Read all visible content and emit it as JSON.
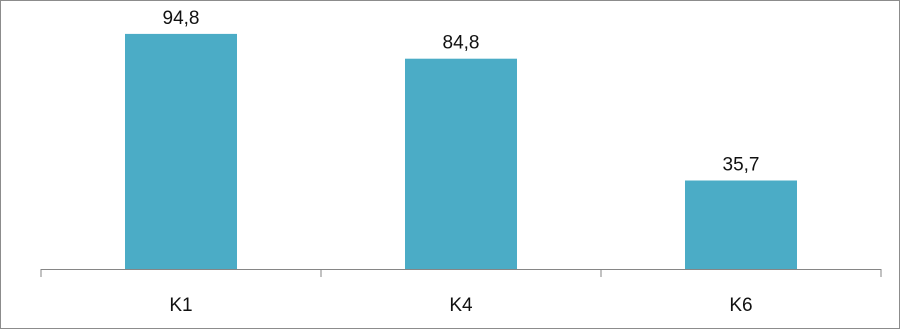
{
  "chart_data": {
    "type": "bar",
    "categories": [
      "K1",
      "K4",
      "K6"
    ],
    "values": [
      94.8,
      84.8,
      35.7
    ],
    "value_labels": [
      "94,8",
      "84,8",
      "35,7"
    ],
    "title": "",
    "xlabel": "",
    "ylabel": "",
    "ylim": [
      0,
      100
    ],
    "grid": false,
    "legend": "none",
    "colors": {
      "bar": "#4bacc6",
      "axis": "#868686",
      "border": "#8c8c8c",
      "text": "#111111"
    }
  }
}
